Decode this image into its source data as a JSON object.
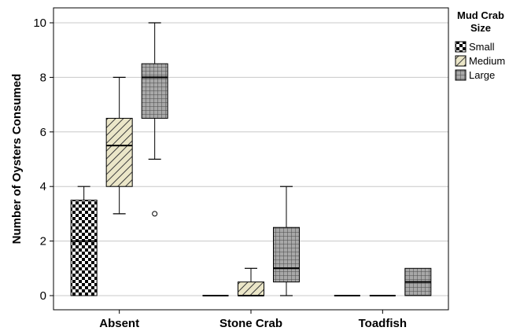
{
  "chart_data": {
    "type": "box",
    "title": "",
    "xlabel": "",
    "ylabel": "Number of Oysters Consumed",
    "ylim": [
      0,
      10.5
    ],
    "yticks": [
      "0",
      "2",
      "4",
      "6",
      "8",
      "10"
    ],
    "grid": true,
    "legend": {
      "title": "Mud Crab Size",
      "title_lines": [
        "Mud Crab",
        "Size"
      ],
      "placement": "top-right, outside plot"
    },
    "categories": [
      "Absent",
      "Stone Crab",
      "Toadfish"
    ],
    "series": [
      {
        "name": "Small",
        "pattern": "checkerboard",
        "color": "#000000",
        "boxes": [
          {
            "min": 0,
            "q1": 0,
            "median": 2,
            "q3": 3.5,
            "max": 4,
            "outliers": []
          },
          {
            "min": 0,
            "q1": 0,
            "median": 0,
            "q3": 0,
            "max": 0,
            "outliers": []
          },
          {
            "min": 0,
            "q1": 0,
            "median": 0,
            "q3": 0,
            "max": 0,
            "outliers": []
          }
        ]
      },
      {
        "name": "Medium",
        "pattern": "diagonal-hatch",
        "color": "#ebe6c8",
        "boxes": [
          {
            "min": 3,
            "q1": 4,
            "median": 5.5,
            "q3": 6.5,
            "max": 8,
            "outliers": []
          },
          {
            "min": 0,
            "q1": 0,
            "median": 0,
            "q3": 0.5,
            "max": 1,
            "outliers": []
          },
          {
            "min": 0,
            "q1": 0,
            "median": 0,
            "q3": 0,
            "max": 0,
            "outliers": []
          }
        ]
      },
      {
        "name": "Large",
        "pattern": "grid",
        "color": "#a8a8a8",
        "boxes": [
          {
            "min": 5,
            "q1": 6.5,
            "median": 8,
            "q3": 8.5,
            "max": 10,
            "outliers": [
              3
            ]
          },
          {
            "min": 0,
            "q1": 0.5,
            "median": 1,
            "q3": 2.5,
            "max": 4,
            "outliers": []
          },
          {
            "min": 0,
            "q1": 0,
            "median": 0.5,
            "q3": 1,
            "max": 1,
            "outliers": []
          }
        ]
      }
    ]
  }
}
